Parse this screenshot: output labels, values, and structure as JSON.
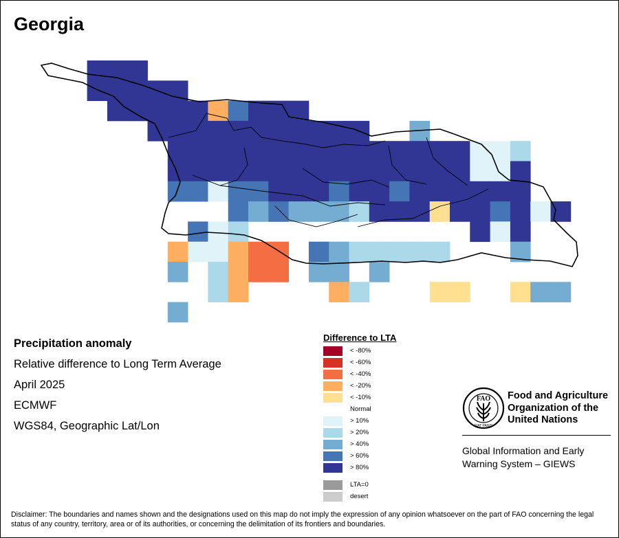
{
  "title": "Georgia",
  "info": {
    "heading": "Precipitation anomaly",
    "lines": [
      "Relative difference to Long Term Average",
      "April 2025",
      "ECMWF",
      "WGS84, Geographic Lat/Lon"
    ]
  },
  "legend": {
    "title": "Difference to LTA",
    "items": [
      {
        "key": "lt80n",
        "label": "< -80%",
        "color": "#a50026"
      },
      {
        "key": "lt60n",
        "label": "< -60%",
        "color": "#d73027"
      },
      {
        "key": "lt40n",
        "label": "< -40%",
        "color": "#f46d43"
      },
      {
        "key": "lt20n",
        "label": "< -20%",
        "color": "#fdae61"
      },
      {
        "key": "lt10n",
        "label": "< -10%",
        "color": "#fee090"
      },
      {
        "key": "normal",
        "label": "Normal",
        "color": "#ffffff"
      },
      {
        "key": "gt10",
        "label": "> 10%",
        "color": "#e0f3f8"
      },
      {
        "key": "gt20",
        "label": "> 20%",
        "color": "#abd9e9"
      },
      {
        "key": "gt40",
        "label": "> 40%",
        "color": "#74add1"
      },
      {
        "key": "gt60",
        "label": "> 60%",
        "color": "#4575b4"
      },
      {
        "key": "gt80",
        "label": "> 80%",
        "color": "#313695"
      }
    ],
    "extra": [
      {
        "label": "LTA=0",
        "color": "#9a9a9a"
      },
      {
        "label": "desert",
        "color": "#cccccc"
      }
    ]
  },
  "grid_rows": [
    [
      "-",
      "-",
      "X",
      "X",
      "X",
      "-",
      "-",
      "-",
      "-",
      "-",
      "-",
      "-",
      "-",
      "-",
      "-",
      "-",
      "-",
      "-",
      "-",
      "-",
      "-",
      "-",
      "-",
      "-",
      "-",
      "-",
      "-"
    ],
    [
      "-",
      "-",
      "X",
      "X",
      "X",
      "X",
      "X",
      "-",
      "-",
      "-",
      "-",
      "-",
      "-",
      "-",
      "-",
      "-",
      "-",
      "-",
      "-",
      "-",
      "-",
      "-",
      "-",
      "-",
      "-",
      "-",
      "-"
    ],
    [
      "-",
      "-",
      "-",
      "X",
      "X",
      "X",
      "X",
      "X",
      "D",
      "C",
      "X",
      "X",
      "X",
      "-",
      "-",
      "-",
      "-",
      "-",
      "-",
      "-",
      "-",
      "-",
      "-",
      "-",
      "-",
      "-",
      "-"
    ],
    [
      "-",
      "-",
      "-",
      "-",
      "-",
      "X",
      "X",
      "X",
      "X",
      "X",
      "X",
      "X",
      "X",
      "X",
      "X",
      "X",
      "-",
      "-",
      "B",
      "-",
      "-",
      "-",
      "-",
      "-",
      "-",
      "-",
      "-"
    ],
    [
      "-",
      "-",
      "-",
      "-",
      "-",
      "-",
      "X",
      "X",
      "X",
      "X",
      "X",
      "X",
      "X",
      "X",
      "X",
      "X",
      "X",
      "X",
      "X",
      "X",
      "X",
      "E",
      "E",
      "A",
      "-",
      "-",
      "-"
    ],
    [
      "-",
      "-",
      "-",
      "-",
      "-",
      "-",
      "X",
      "X",
      "X",
      "X",
      "X",
      "X",
      "X",
      "X",
      "X",
      "X",
      "X",
      "X",
      "X",
      "X",
      "X",
      "E",
      "E",
      "X",
      "-",
      "-",
      "-"
    ],
    [
      "-",
      "-",
      "-",
      "-",
      "-",
      "-",
      "C",
      "C",
      "E",
      "C",
      "C",
      "X",
      "X",
      "X",
      "C",
      "X",
      "X",
      "C",
      "X",
      "X",
      "X",
      "X",
      "X",
      "X",
      "-",
      "-",
      "-"
    ],
    [
      "-",
      "-",
      "-",
      "-",
      "-",
      "-",
      "-",
      "-",
      "-",
      "C",
      "B",
      "C",
      "B",
      "B",
      "B",
      "A",
      "X",
      "X",
      "X",
      "N",
      "X",
      "X",
      "C",
      "X",
      "E",
      "X",
      "-"
    ],
    [
      "-",
      "-",
      "-",
      "-",
      "-",
      "-",
      "-",
      "C",
      "E",
      "A",
      "-",
      "-",
      "-",
      "-",
      "-",
      "-",
      "-",
      "-",
      "-",
      "-",
      "-",
      "X",
      "E",
      "X",
      "-",
      "-",
      "-"
    ],
    [
      "-",
      "-",
      "-",
      "-",
      "-",
      "-",
      "D",
      "E",
      "E",
      "K",
      "F",
      "F",
      "-",
      "C",
      "B",
      "A",
      "A",
      "A",
      "A",
      "A",
      "-",
      "-",
      "-",
      "B",
      "-",
      "-",
      "-"
    ],
    [
      "-",
      "-",
      "-",
      "-",
      "-",
      "-",
      "B",
      "-",
      "A",
      "K",
      "F",
      "F",
      "-",
      "B",
      "B",
      "-",
      "B",
      "-",
      "-",
      "-",
      "-",
      "-",
      "-",
      "-",
      "-",
      "-",
      "-"
    ],
    [
      "-",
      "-",
      "-",
      "-",
      "-",
      "-",
      "-",
      "-",
      "A",
      "K",
      "-",
      "-",
      "-",
      "-",
      "K",
      "A",
      "-",
      "-",
      "-",
      "N",
      "N",
      "-",
      "-",
      "N",
      "B",
      "B",
      "-"
    ],
    [
      "-",
      "-",
      "-",
      "-",
      "-",
      "-",
      "B",
      "-",
      "-",
      "-",
      "-",
      "-",
      "-",
      "-",
      "-",
      "-",
      "-",
      "-",
      "-",
      "-",
      "-",
      "-",
      "-",
      "-",
      "-",
      "-",
      "-"
    ],
    [
      "-",
      "-",
      "-",
      "-",
      "-",
      "-",
      "-",
      "-",
      "-",
      "-",
      "-",
      "-",
      "-",
      "-",
      "-",
      "-",
      "-",
      "-",
      "-",
      "-",
      "-",
      "-",
      "-",
      "-",
      "-",
      "-",
      "-"
    ]
  ],
  "footer": {
    "fao_org_lines": [
      "Food and Agriculture",
      "Organization of the",
      "United Nations"
    ],
    "fao_logo_text": "FIAT PANIS",
    "fao_monogram": "FAO",
    "giews_lines": [
      "Global Information and Early",
      "Warning System – GIEWS"
    ],
    "disclaimer": "Disclaimer: The boundaries and names shown and the designations used on this map do not imply the expression of any opinion whatsoever on the part of FAO concerning the legal status of any country, territory, area or of its authorities, or concerning the delimitation of its frontiers and boundaries."
  }
}
